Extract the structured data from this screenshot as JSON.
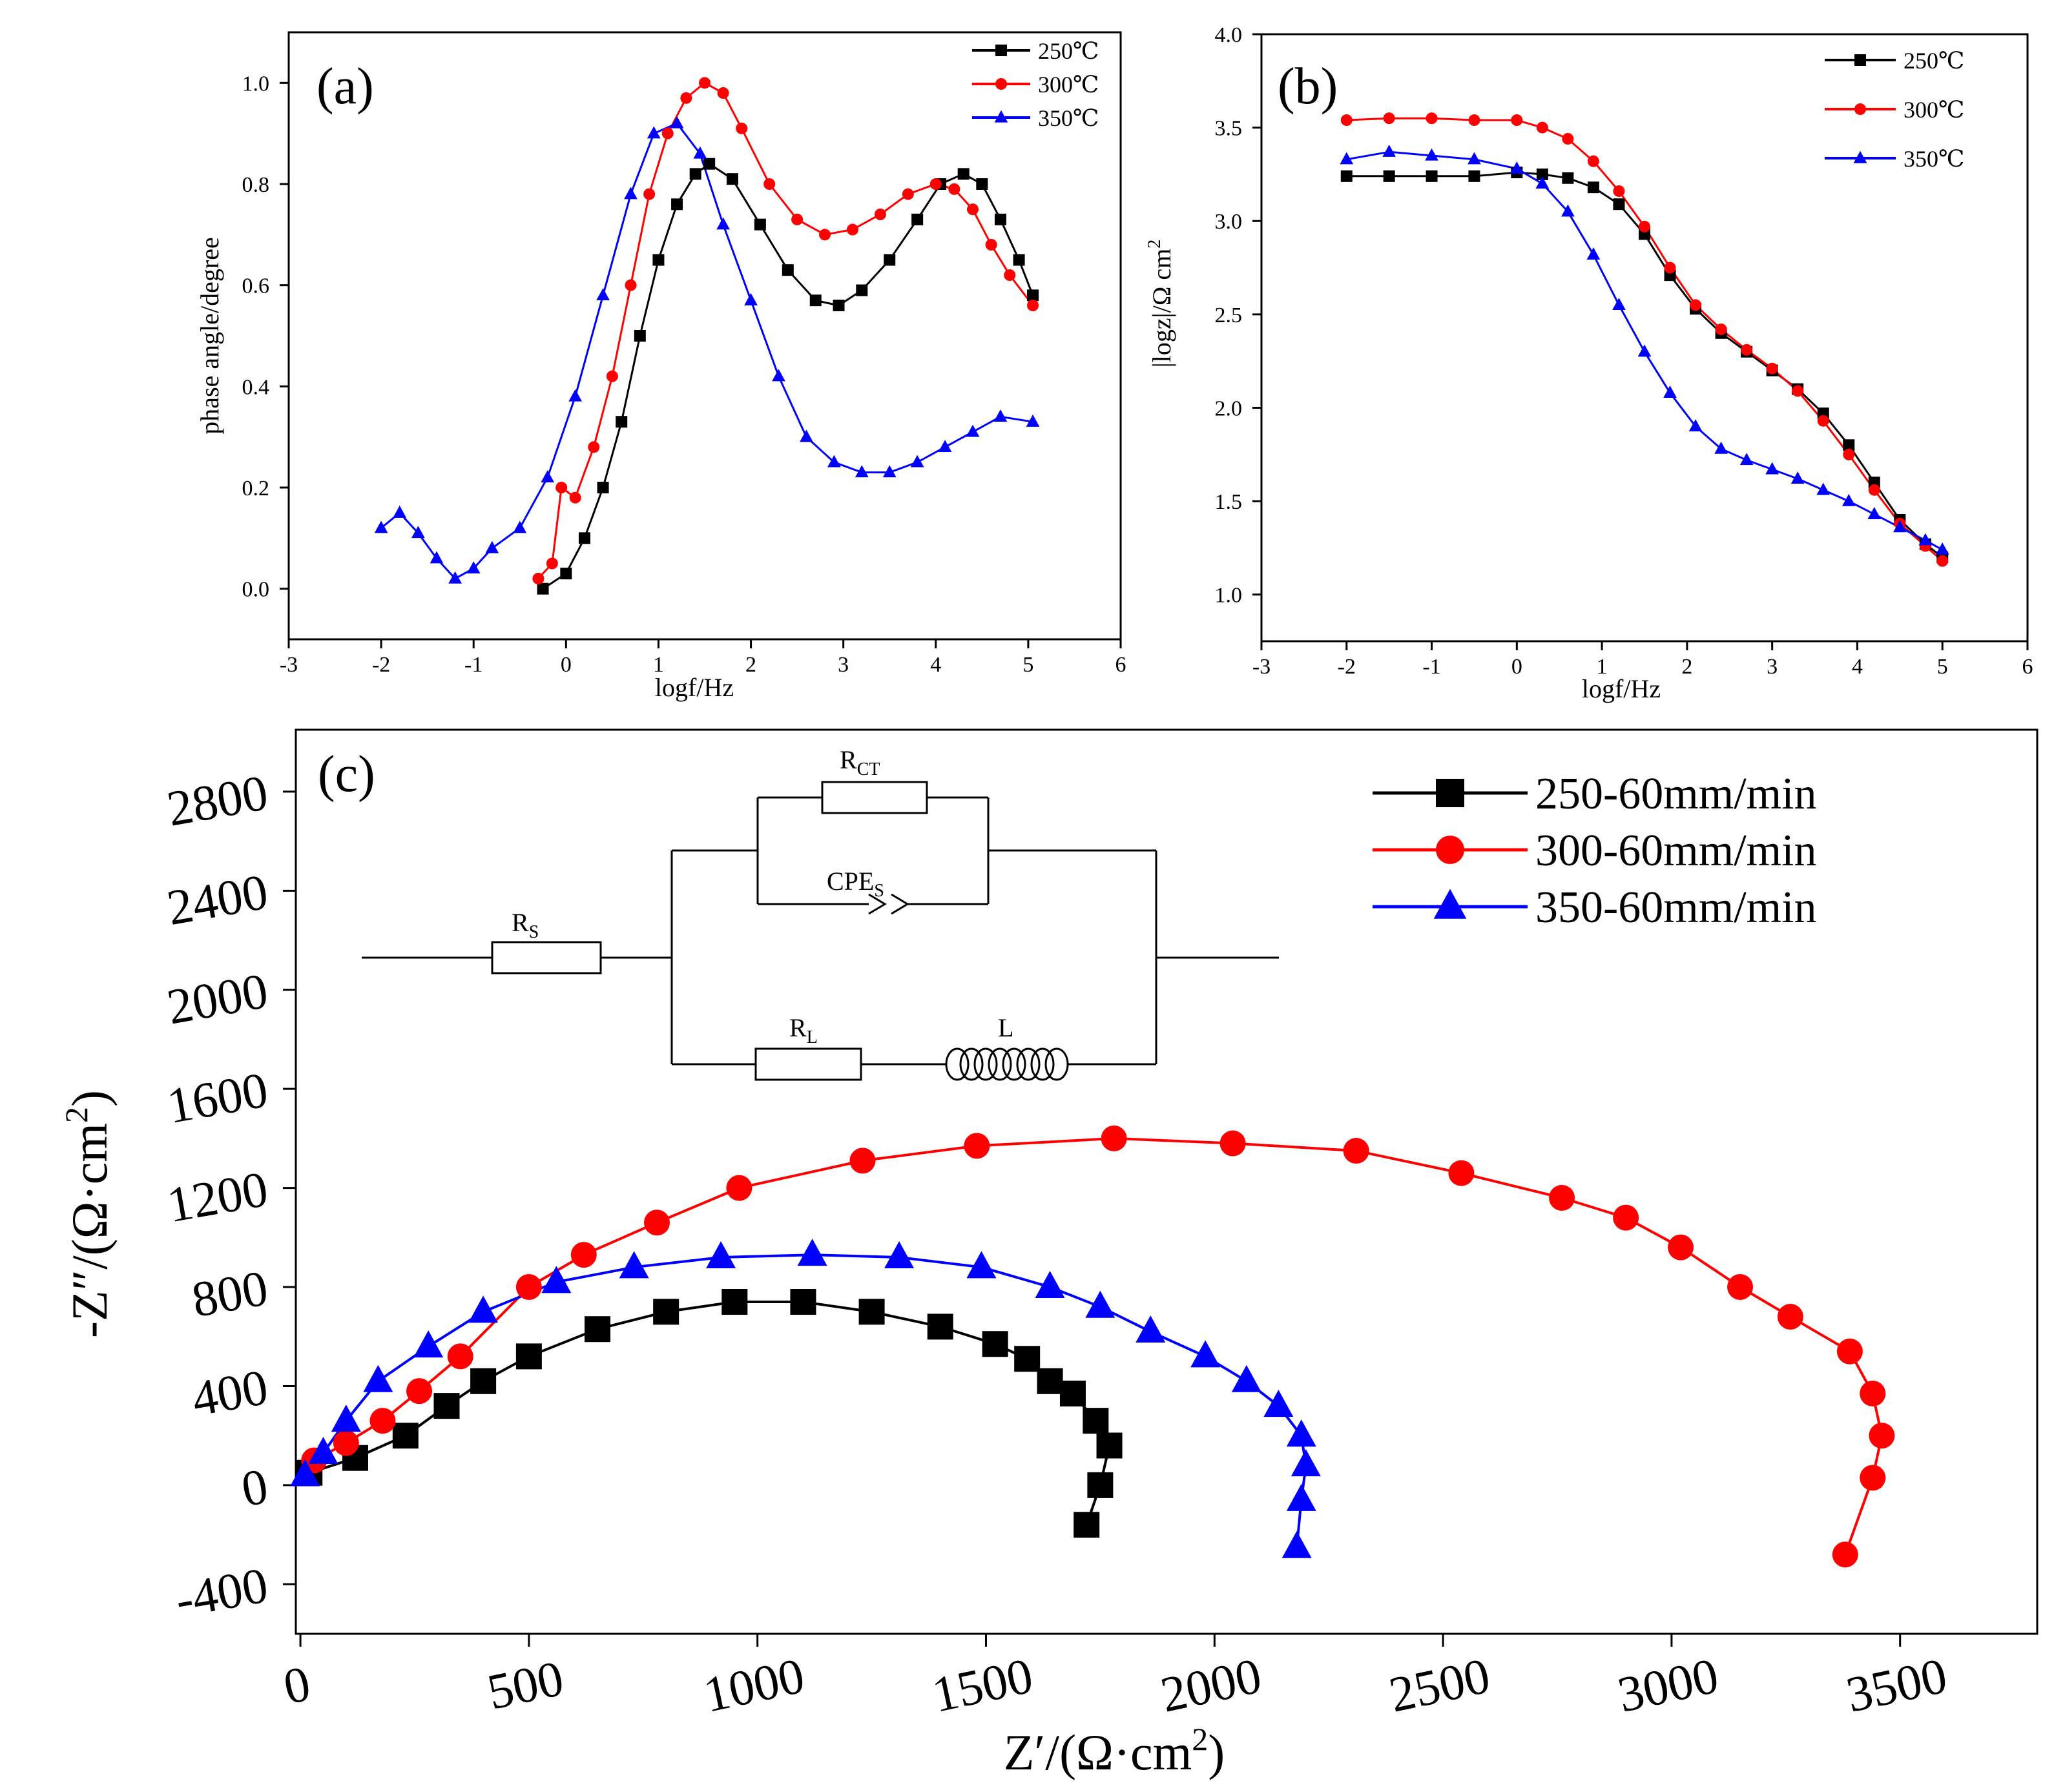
{
  "chart_data": [
    {
      "id": "a",
      "type": "line",
      "panel_label": "(a)",
      "xlabel": "logf/Hz",
      "ylabel": "phase angle/degree",
      "xlim": [
        -3,
        6
      ],
      "ylim": [
        -0.1,
        1.1
      ],
      "xticks": [
        -3,
        -2,
        -1,
        0,
        1,
        2,
        3,
        4,
        5,
        6
      ],
      "yticks": [
        0.0,
        0.2,
        0.4,
        0.6,
        0.8,
        1.0
      ],
      "ytick_labels": [
        "0.0",
        "0.2",
        "0.4",
        "0.6",
        "0.8",
        "1.0"
      ],
      "series": [
        {
          "name": "250℃",
          "color": "#000000",
          "marker": "square",
          "points": [
            [
              -0.25,
              0.0
            ],
            [
              0.0,
              0.03
            ],
            [
              0.2,
              0.1
            ],
            [
              0.4,
              0.2
            ],
            [
              0.6,
              0.33
            ],
            [
              0.8,
              0.5
            ],
            [
              1.0,
              0.65
            ],
            [
              1.2,
              0.76
            ],
            [
              1.4,
              0.82
            ],
            [
              1.55,
              0.84
            ],
            [
              1.8,
              0.81
            ],
            [
              2.1,
              0.72
            ],
            [
              2.4,
              0.63
            ],
            [
              2.7,
              0.57
            ],
            [
              2.95,
              0.56
            ],
            [
              3.2,
              0.59
            ],
            [
              3.5,
              0.65
            ],
            [
              3.8,
              0.73
            ],
            [
              4.05,
              0.8
            ],
            [
              4.3,
              0.82
            ],
            [
              4.5,
              0.8
            ],
            [
              4.7,
              0.73
            ],
            [
              4.9,
              0.65
            ],
            [
              5.05,
              0.58
            ]
          ]
        },
        {
          "name": "300℃",
          "color": "#ff0000",
          "marker": "circle",
          "points": [
            [
              -0.3,
              0.02
            ],
            [
              -0.15,
              0.05
            ],
            [
              -0.05,
              0.2
            ],
            [
              0.1,
              0.18
            ],
            [
              0.3,
              0.28
            ],
            [
              0.5,
              0.42
            ],
            [
              0.7,
              0.6
            ],
            [
              0.9,
              0.78
            ],
            [
              1.1,
              0.9
            ],
            [
              1.3,
              0.97
            ],
            [
              1.5,
              1.0
            ],
            [
              1.7,
              0.98
            ],
            [
              1.9,
              0.91
            ],
            [
              2.2,
              0.8
            ],
            [
              2.5,
              0.73
            ],
            [
              2.8,
              0.7
            ],
            [
              3.1,
              0.71
            ],
            [
              3.4,
              0.74
            ],
            [
              3.7,
              0.78
            ],
            [
              4.0,
              0.8
            ],
            [
              4.2,
              0.79
            ],
            [
              4.4,
              0.75
            ],
            [
              4.6,
              0.68
            ],
            [
              4.8,
              0.62
            ],
            [
              5.05,
              0.56
            ]
          ]
        },
        {
          "name": "350℃",
          "color": "#0000ff",
          "marker": "triangle",
          "points": [
            [
              -2.0,
              0.12
            ],
            [
              -1.8,
              0.15
            ],
            [
              -1.6,
              0.11
            ],
            [
              -1.4,
              0.06
            ],
            [
              -1.2,
              0.02
            ],
            [
              -1.0,
              0.04
            ],
            [
              -0.8,
              0.08
            ],
            [
              -0.5,
              0.12
            ],
            [
              -0.2,
              0.22
            ],
            [
              0.1,
              0.38
            ],
            [
              0.4,
              0.58
            ],
            [
              0.7,
              0.78
            ],
            [
              0.95,
              0.9
            ],
            [
              1.2,
              0.92
            ],
            [
              1.45,
              0.86
            ],
            [
              1.7,
              0.72
            ],
            [
              2.0,
              0.57
            ],
            [
              2.3,
              0.42
            ],
            [
              2.6,
              0.3
            ],
            [
              2.9,
              0.25
            ],
            [
              3.2,
              0.23
            ],
            [
              3.5,
              0.23
            ],
            [
              3.8,
              0.25
            ],
            [
              4.1,
              0.28
            ],
            [
              4.4,
              0.31
            ],
            [
              4.7,
              0.34
            ],
            [
              5.05,
              0.33
            ]
          ]
        }
      ]
    },
    {
      "id": "b",
      "type": "line",
      "panel_label": "(b)",
      "xlabel": "logf/Hz",
      "ylabel_main": "|logz|/Ω  cm",
      "ylabel_sup": "2",
      "xlim": [
        -3,
        6
      ],
      "ylim": [
        0.75,
        4.0
      ],
      "xticks": [
        -3,
        -2,
        -1,
        0,
        1,
        2,
        3,
        4,
        5,
        6
      ],
      "yticks": [
        1.0,
        1.5,
        2.0,
        2.5,
        3.0,
        3.5,
        4.0
      ],
      "ytick_labels": [
        "1.0",
        "1.5",
        "2.0",
        "2.5",
        "3.0",
        "3.5",
        "4.0"
      ],
      "series": [
        {
          "name": "250℃",
          "color": "#000000",
          "marker": "square",
          "points": [
            [
              -2.0,
              3.24
            ],
            [
              -1.5,
              3.24
            ],
            [
              -1.0,
              3.24
            ],
            [
              -0.5,
              3.24
            ],
            [
              0.0,
              3.26
            ],
            [
              0.3,
              3.25
            ],
            [
              0.6,
              3.23
            ],
            [
              0.9,
              3.18
            ],
            [
              1.2,
              3.09
            ],
            [
              1.5,
              2.93
            ],
            [
              1.8,
              2.71
            ],
            [
              2.1,
              2.53
            ],
            [
              2.4,
              2.4
            ],
            [
              2.7,
              2.3
            ],
            [
              3.0,
              2.2
            ],
            [
              3.3,
              2.1
            ],
            [
              3.6,
              1.97
            ],
            [
              3.9,
              1.8
            ],
            [
              4.2,
              1.6
            ],
            [
              4.5,
              1.4
            ],
            [
              4.8,
              1.27
            ],
            [
              5.0,
              1.2
            ]
          ]
        },
        {
          "name": "300℃",
          "color": "#ff0000",
          "marker": "circle",
          "points": [
            [
              -2.0,
              3.54
            ],
            [
              -1.5,
              3.55
            ],
            [
              -1.0,
              3.55
            ],
            [
              -0.5,
              3.54
            ],
            [
              0.0,
              3.54
            ],
            [
              0.3,
              3.5
            ],
            [
              0.6,
              3.44
            ],
            [
              0.9,
              3.32
            ],
            [
              1.2,
              3.16
            ],
            [
              1.5,
              2.97
            ],
            [
              1.8,
              2.75
            ],
            [
              2.1,
              2.55
            ],
            [
              2.4,
              2.42
            ],
            [
              2.7,
              2.31
            ],
            [
              3.0,
              2.21
            ],
            [
              3.3,
              2.09
            ],
            [
              3.6,
              1.93
            ],
            [
              3.9,
              1.75
            ],
            [
              4.2,
              1.56
            ],
            [
              4.5,
              1.38
            ],
            [
              4.8,
              1.26
            ],
            [
              5.0,
              1.18
            ]
          ]
        },
        {
          "name": "350℃",
          "color": "#0000ff",
          "marker": "triangle",
          "points": [
            [
              -2.0,
              3.33
            ],
            [
              -1.5,
              3.37
            ],
            [
              -1.0,
              3.35
            ],
            [
              -0.5,
              3.33
            ],
            [
              0.0,
              3.28
            ],
            [
              0.3,
              3.2
            ],
            [
              0.6,
              3.05
            ],
            [
              0.9,
              2.82
            ],
            [
              1.2,
              2.55
            ],
            [
              1.5,
              2.3
            ],
            [
              1.8,
              2.08
            ],
            [
              2.1,
              1.9
            ],
            [
              2.4,
              1.78
            ],
            [
              2.7,
              1.72
            ],
            [
              3.0,
              1.67
            ],
            [
              3.3,
              1.62
            ],
            [
              3.6,
              1.56
            ],
            [
              3.9,
              1.5
            ],
            [
              4.2,
              1.43
            ],
            [
              4.5,
              1.36
            ],
            [
              4.8,
              1.29
            ],
            [
              5.0,
              1.24
            ]
          ]
        }
      ]
    },
    {
      "id": "c",
      "type": "scatter",
      "panel_label": "(c)",
      "xlabel_main": "Z′/(Ω·cm",
      "xlabel_sup": "2",
      "xlabel_end": ")",
      "ylabel_main": "-Z″/(Ω·cm",
      "ylabel_sup": "2",
      "ylabel_end": ")",
      "xlim": [
        -10,
        3800
      ],
      "ylim": [
        -600,
        3050
      ],
      "xticks": [
        0,
        500,
        1000,
        1500,
        2000,
        2500,
        3000,
        3500
      ],
      "yticks": [
        -400,
        0,
        400,
        800,
        1200,
        1600,
        2000,
        2400,
        2800
      ],
      "series": [
        {
          "name": "250-60mm/min",
          "color": "#000000",
          "marker": "square",
          "points": [
            [
              20,
              50
            ],
            [
              120,
              110
            ],
            [
              230,
              200
            ],
            [
              320,
              320
            ],
            [
              400,
              420
            ],
            [
              500,
              520
            ],
            [
              650,
              630
            ],
            [
              800,
              700
            ],
            [
              950,
              740
            ],
            [
              1100,
              740
            ],
            [
              1250,
              700
            ],
            [
              1400,
              640
            ],
            [
              1520,
              570
            ],
            [
              1590,
              510
            ],
            [
              1640,
              420
            ],
            [
              1690,
              370
            ],
            [
              1740,
              260
            ],
            [
              1770,
              160
            ],
            [
              1750,
              0
            ],
            [
              1720,
              -160
            ]
          ]
        },
        {
          "name": "300-60mm/min",
          "color": "#ff0000",
          "marker": "circle",
          "points": [
            [
              30,
              100
            ],
            [
              100,
              170
            ],
            [
              180,
              260
            ],
            [
              260,
              380
            ],
            [
              350,
              520
            ],
            [
              500,
              800
            ],
            [
              620,
              930
            ],
            [
              780,
              1060
            ],
            [
              960,
              1200
            ],
            [
              1230,
              1310
            ],
            [
              1480,
              1370
            ],
            [
              1780,
              1400
            ],
            [
              2040,
              1380
            ],
            [
              2310,
              1350
            ],
            [
              2540,
              1260
            ],
            [
              2760,
              1160
            ],
            [
              2900,
              1080
            ],
            [
              3020,
              960
            ],
            [
              3150,
              800
            ],
            [
              3260,
              680
            ],
            [
              3390,
              540
            ],
            [
              3440,
              370
            ],
            [
              3460,
              200
            ],
            [
              3440,
              30
            ],
            [
              3380,
              -280
            ]
          ]
        },
        {
          "name": "350-60mm/min",
          "color": "#0000ff",
          "marker": "triangle",
          "points": [
            [
              10,
              40
            ],
            [
              50,
              130
            ],
            [
              100,
              260
            ],
            [
              170,
              420
            ],
            [
              280,
              560
            ],
            [
              400,
              700
            ],
            [
              560,
              820
            ],
            [
              730,
              880
            ],
            [
              920,
              920
            ],
            [
              1120,
              930
            ],
            [
              1310,
              920
            ],
            [
              1490,
              880
            ],
            [
              1640,
              800
            ],
            [
              1750,
              720
            ],
            [
              1860,
              620
            ],
            [
              1980,
              520
            ],
            [
              2070,
              420
            ],
            [
              2140,
              320
            ],
            [
              2190,
              200
            ],
            [
              2200,
              80
            ],
            [
              2190,
              -60
            ],
            [
              2180,
              -250
            ]
          ]
        }
      ],
      "circuit": {
        "labels": {
          "rs": "Rs",
          "rct": "RCT",
          "cpe": "CPEs",
          "rl": "RL",
          "l": "L"
        }
      }
    }
  ]
}
